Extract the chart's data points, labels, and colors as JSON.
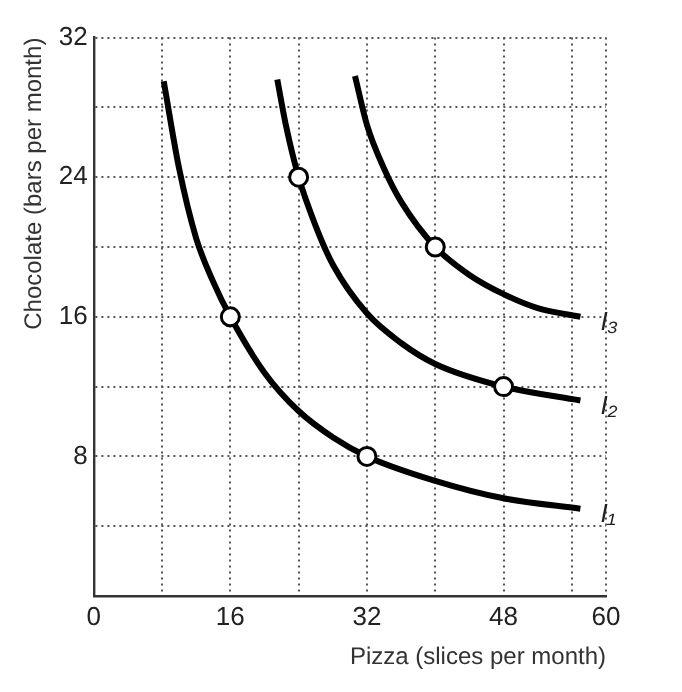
{
  "chart_data": {
    "type": "line",
    "xlabel": "Pizza (slices per month)",
    "ylabel": "Chocolate (bars per month)",
    "xlim": [
      0,
      60
    ],
    "ylim": [
      0,
      32
    ],
    "xticks": [
      0,
      {
        "value": 8,
        "label": null
      },
      16,
      {
        "value": 24,
        "label": null
      },
      32,
      {
        "value": 40,
        "label": null
      },
      48,
      {
        "value": 56,
        "label": null
      },
      60
    ],
    "yticks": [
      {
        "value": 0,
        "label": null
      },
      {
        "value": 4,
        "label": null
      },
      8,
      {
        "value": 12,
        "label": null
      },
      16,
      {
        "value": 20,
        "label": null
      },
      24,
      {
        "value": 28,
        "label": null
      },
      32
    ],
    "grid": true,
    "legend": false,
    "series": [
      {
        "name": "I₁",
        "color": "#000000",
        "marker": "none",
        "x": [
          8.2,
          10,
          12,
          14,
          16,
          20,
          24,
          28,
          32,
          40,
          48,
          57
        ],
        "values": [
          29.5,
          24.5,
          20.5,
          18,
          16,
          12.8,
          10.6,
          9.1,
          8,
          6.6,
          5.6,
          5
        ]
      },
      {
        "name": "I₂",
        "color": "#000000",
        "marker": "none",
        "x": [
          21.5,
          22.5,
          24,
          26,
          28,
          32,
          36,
          40,
          48,
          57
        ],
        "values": [
          29.6,
          27,
          24,
          21.2,
          19,
          16.2,
          14.5,
          13.3,
          12,
          11.2
        ]
      },
      {
        "name": "I₃",
        "color": "#000000",
        "marker": "none",
        "x": [
          30.6,
          32,
          34,
          36,
          40,
          44,
          48,
          52,
          57
        ],
        "values": [
          29.8,
          27,
          24.5,
          22.6,
          20,
          18.4,
          17.3,
          16.5,
          16
        ]
      },
      {
        "type": "scatter",
        "color": "#000000",
        "marker": "circle",
        "x": [
          16,
          32,
          24,
          48,
          40
        ],
        "values": [
          16,
          8,
          24,
          12,
          20
        ]
      }
    ]
  }
}
